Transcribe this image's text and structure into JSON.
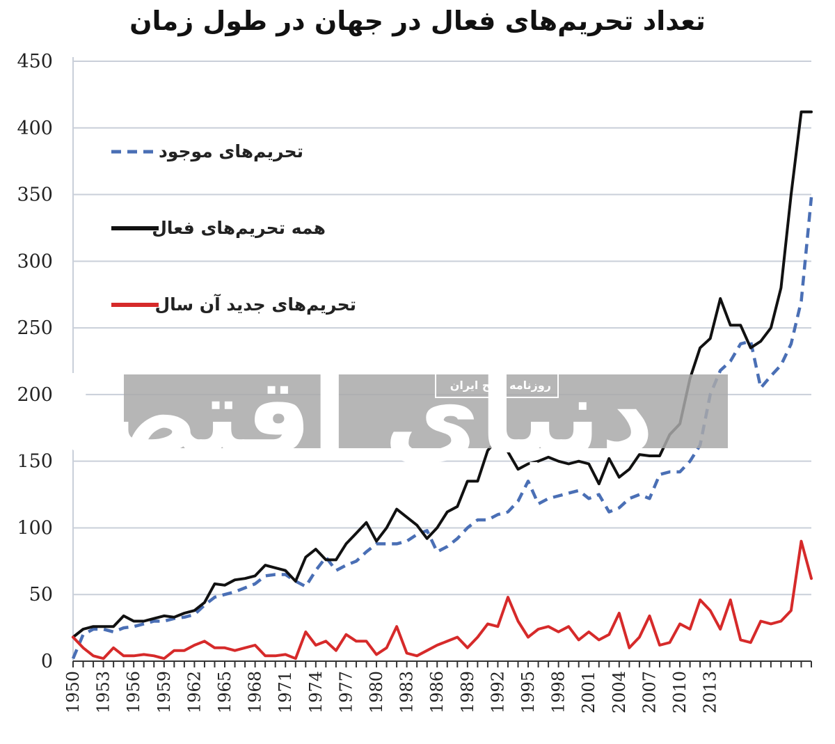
{
  "chart_data": {
    "type": "line",
    "title": "تعداد تحریم‌های فعال در جهان در طول زمان",
    "xlabel": "",
    "ylabel": "",
    "ylim": [
      0,
      450
    ],
    "yticks": [
      0,
      50,
      100,
      150,
      200,
      250,
      300,
      350,
      400,
      450
    ],
    "xtick_labels": [
      "1950",
      "1953",
      "1956",
      "1959",
      "1962",
      "1965",
      "1968",
      "1971",
      "1974",
      "1977",
      "1980",
      "1983",
      "1986",
      "1989",
      "1992",
      "1995",
      "1998",
      "2001",
      "2004",
      "2007",
      "2010",
      "2013"
    ],
    "x": [
      1950,
      1951,
      1952,
      1953,
      1954,
      1955,
      1956,
      1957,
      1958,
      1959,
      1960,
      1961,
      1962,
      1963,
      1964,
      1965,
      1966,
      1967,
      1968,
      1969,
      1970,
      1971,
      1972,
      1973,
      1974,
      1975,
      1976,
      1977,
      1978,
      1979,
      1980,
      1981,
      1982,
      1983,
      1984,
      1985,
      1986,
      1987,
      1988,
      1989,
      1990,
      1991,
      1992,
      1993,
      1994,
      1995,
      1996,
      1997,
      1998,
      1999,
      2000,
      2001,
      2002,
      2003,
      2004,
      2005,
      2006,
      2007,
      2008,
      2009,
      2010,
      2011,
      2012,
      2013,
      2014,
      2015,
      2016,
      2017,
      2018,
      2019,
      2020,
      2021,
      2022,
      2023
    ],
    "grid": true,
    "legend_position": "top-left",
    "series": [
      {
        "name": "تحریم‌های موجود",
        "color": "#4a6fb5",
        "style": "dashed",
        "values": [
          2,
          20,
          24,
          24,
          22,
          25,
          26,
          28,
          30,
          30,
          32,
          33,
          35,
          42,
          48,
          50,
          52,
          55,
          58,
          64,
          65,
          65,
          60,
          56,
          68,
          78,
          68,
          72,
          75,
          82,
          88,
          88,
          88,
          90,
          95,
          98,
          82,
          86,
          92,
          100,
          106,
          106,
          110,
          112,
          120,
          135,
          118,
          122,
          124,
          126,
          128,
          122,
          125,
          112,
          115,
          122,
          125,
          122,
          140,
          142,
          142,
          150,
          162,
          200,
          218,
          225,
          238,
          240,
          205,
          214,
          222,
          238,
          270,
          348
        ],
        "label_y_hint": 0
      },
      {
        "name": "همه تحریم‌های فعال",
        "color": "#111111",
        "style": "solid",
        "values": [
          18,
          24,
          26,
          26,
          26,
          34,
          30,
          30,
          32,
          34,
          33,
          36,
          38,
          44,
          58,
          57,
          61,
          62,
          64,
          72,
          70,
          68,
          60,
          78,
          84,
          76,
          76,
          88,
          96,
          104,
          90,
          100,
          114,
          108,
          102,
          92,
          100,
          112,
          116,
          135,
          135,
          158,
          167,
          157,
          144,
          148,
          150,
          153,
          150,
          148,
          150,
          148,
          133,
          152,
          138,
          144,
          155,
          154,
          154,
          170,
          178,
          212,
          235,
          242,
          272,
          252,
          252,
          235,
          240,
          250,
          280,
          350,
          412,
          412
        ]
      },
      {
        "name": "تحریم‌های جدید آن سال",
        "color": "#d62a2a",
        "style": "solid",
        "values": [
          18,
          10,
          4,
          2,
          10,
          4,
          4,
          5,
          4,
          2,
          8,
          8,
          12,
          15,
          10,
          10,
          8,
          10,
          12,
          4,
          4,
          5,
          2,
          22,
          12,
          15,
          8,
          20,
          15,
          15,
          5,
          10,
          26,
          6,
          4,
          8,
          12,
          15,
          18,
          10,
          18,
          28,
          26,
          48,
          30,
          18,
          24,
          26,
          22,
          26,
          16,
          22,
          16,
          20,
          36,
          10,
          18,
          34,
          12,
          14,
          28,
          24,
          46,
          38,
          24,
          46,
          16,
          14,
          30,
          28,
          30,
          38,
          90,
          62
        ]
      }
    ]
  },
  "watermark": {
    "main_text": "دنیای اقتصاد",
    "sub_text": "روزنامه صبح ایران"
  },
  "colors": {
    "grid": "#c9cfd9",
    "axis": "#333333",
    "watermark_band": "#a9a9a9"
  }
}
